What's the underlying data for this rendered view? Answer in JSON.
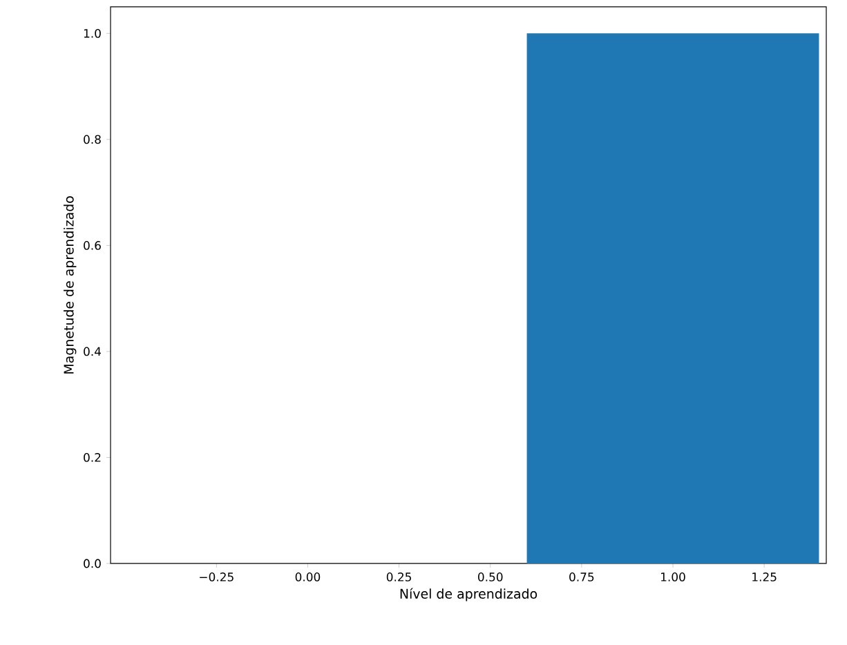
{
  "chart_data": {
    "type": "bar",
    "xlabel": "Nível de aprendizado",
    "ylabel": "Magnetude de aprendizado",
    "x": [
      1
    ],
    "values": [
      1
    ],
    "color": "#1f77b4",
    "xlim": [
      -0.54,
      1.42
    ],
    "ylim": [
      0,
      1.05
    ],
    "xticks": [
      {
        "value": -0.25,
        "label": "−0.25"
      },
      {
        "value": 0,
        "label": "0.00"
      },
      {
        "value": 0.25,
        "label": "0.25"
      },
      {
        "value": 0.5,
        "label": "0.50"
      },
      {
        "value": 0.75,
        "label": "0.75"
      },
      {
        "value": 1,
        "label": "1.00"
      },
      {
        "value": 1.25,
        "label": "1.25"
      }
    ],
    "yticks": [
      {
        "value": 0,
        "label": "0.0"
      },
      {
        "value": 0.2,
        "label": "0.2"
      },
      {
        "value": 0.4,
        "label": "0.4"
      },
      {
        "value": 0.6,
        "label": "0.6"
      },
      {
        "value": 0.8,
        "label": "0.8"
      },
      {
        "value": 1,
        "label": "1.0"
      }
    ],
    "grid": false
  }
}
